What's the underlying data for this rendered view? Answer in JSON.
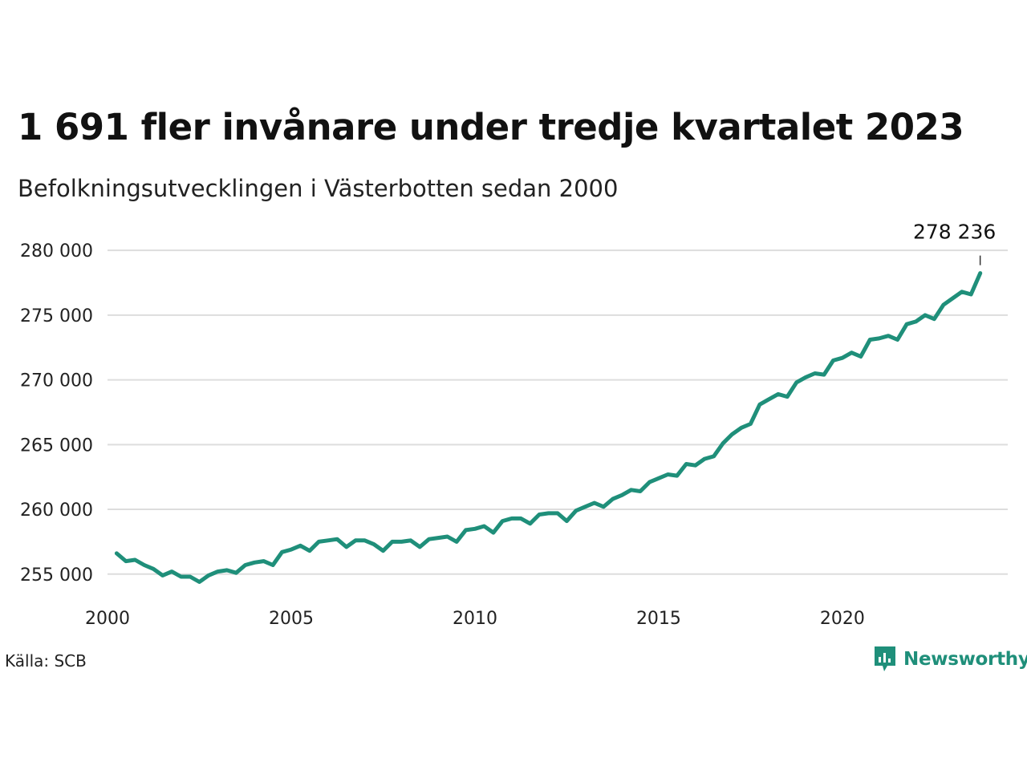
{
  "header": {
    "title": "1 691 fler invånare under tredje kvartalet 2023",
    "subtitle": "Befolkningsutvecklingen i Västerbotten sedan 2000"
  },
  "footer": {
    "source": "Källa: SCB",
    "brand": "Newsworthy"
  },
  "colors": {
    "line": "#1f8f7a",
    "grid": "#dddddd",
    "brand": "#1f8f7a"
  },
  "chart_data": {
    "type": "line",
    "title": "1 691 fler invånare under tredje kvartalet 2023",
    "subtitle": "Befolkningsutvecklingen i Västerbotten sedan 2000",
    "xlabel": "",
    "ylabel": "",
    "xlim": [
      2000,
      2024.5
    ],
    "ylim": [
      253500,
      281000
    ],
    "x_ticks": [
      2000,
      2005,
      2010,
      2015,
      2020
    ],
    "x_tick_labels": [
      "2000",
      "2005",
      "2010",
      "2015",
      "2020"
    ],
    "y_ticks": [
      255000,
      260000,
      265000,
      270000,
      275000,
      280000
    ],
    "y_tick_labels": [
      "255 000",
      "260 000",
      "265 000",
      "270 000",
      "275 000",
      "280 000"
    ],
    "grid": true,
    "annotation": {
      "label": "278 236",
      "x": 2023.75,
      "y": 278236
    },
    "series": [
      {
        "x_start": 2000.25,
        "x_step": 0.25,
        "values": [
          256600,
          256000,
          256100,
          255700,
          255400,
          254900,
          255200,
          254800,
          254800,
          254400,
          254900,
          255200,
          255300,
          255100,
          255700,
          255900,
          256000,
          255700,
          256700,
          256900,
          257200,
          256800,
          257500,
          257600,
          257700,
          257100,
          257600,
          257600,
          257300,
          256800,
          257500,
          257500,
          257600,
          257100,
          257700,
          257800,
          257900,
          257500,
          258400,
          258500,
          258700,
          258200,
          259100,
          259300,
          259300,
          258900,
          259600,
          259700,
          259700,
          259100,
          259900,
          260200,
          260500,
          260200,
          260800,
          261100,
          261500,
          261400,
          262100,
          262400,
          262700,
          262600,
          263500,
          263400,
          263900,
          264100,
          265100,
          265800,
          266300,
          266600,
          268100,
          268500,
          268900,
          268700,
          269800,
          270200,
          270500,
          270400,
          271500,
          271700,
          272100,
          271800,
          273100,
          273200,
          273400,
          273100,
          274300,
          274500,
          275000,
          274700,
          275800,
          276300,
          276800,
          276600,
          278236
        ]
      }
    ]
  }
}
